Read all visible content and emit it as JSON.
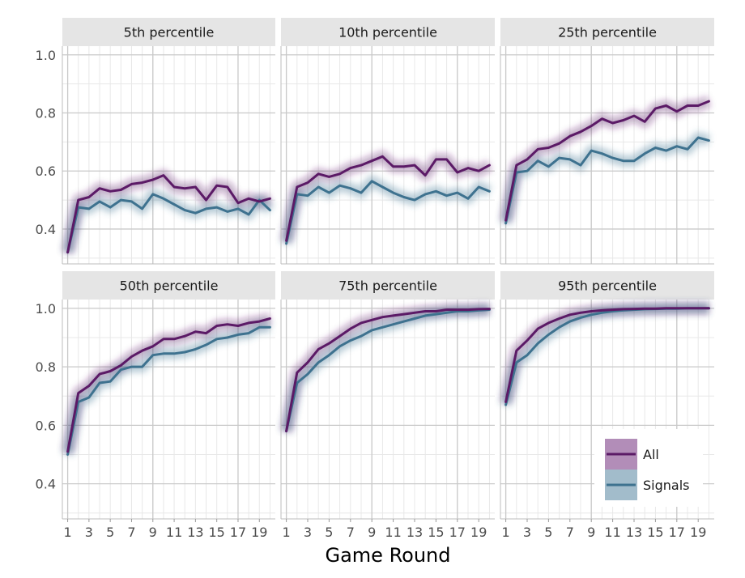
{
  "chart_data": {
    "type": "line",
    "facet_titles": [
      "5th percentile",
      "10th percentile",
      "25th percentile",
      "50th percentile",
      "75th percentile",
      "95th percentile"
    ],
    "xlabel": "Game Round",
    "ylabel": "",
    "x_tick_labels": [
      "1",
      "3",
      "5",
      "7",
      "9",
      "11",
      "13",
      "15",
      "17",
      "19"
    ],
    "y_tick_labels": [
      "0.4",
      "0.6",
      "0.8",
      "1.0"
    ],
    "x": [
      1,
      2,
      3,
      4,
      5,
      6,
      7,
      8,
      9,
      10,
      11,
      12,
      13,
      14,
      15,
      16,
      17,
      18,
      19,
      20
    ],
    "xlim": [
      0.5,
      20.5
    ],
    "ylim": [
      0.28,
      1.03
    ],
    "ribbons": true,
    "legend": {
      "position": "bottom-right, inside last panel",
      "entries": [
        {
          "label": "All",
          "color": "#5b1a66"
        },
        {
          "label": "Signals",
          "color": "#3e728f"
        }
      ]
    },
    "panels": [
      {
        "title": "5th percentile",
        "series": [
          {
            "name": "All",
            "color": "#5b1a66",
            "values": [
              0.32,
              0.5,
              0.51,
              0.54,
              0.53,
              0.535,
              0.555,
              0.56,
              0.57,
              0.585,
              0.545,
              0.54,
              0.545,
              0.5,
              0.55,
              0.545,
              0.49,
              0.505,
              0.495,
              0.505
            ]
          },
          {
            "name": "Signals",
            "color": "#3e728f",
            "values": [
              0.32,
              0.475,
              0.47,
              0.495,
              0.475,
              0.5,
              0.495,
              0.47,
              0.52,
              0.505,
              0.485,
              0.465,
              0.455,
              0.47,
              0.475,
              0.46,
              0.47,
              0.45,
              0.5,
              0.465
            ]
          }
        ]
      },
      {
        "title": "10th percentile",
        "series": [
          {
            "name": "All",
            "color": "#5b1a66",
            "values": [
              0.36,
              0.545,
              0.56,
              0.59,
              0.58,
              0.59,
              0.61,
              0.62,
              0.635,
              0.65,
              0.615,
              0.615,
              0.62,
              0.585,
              0.64,
              0.64,
              0.595,
              0.61,
              0.6,
              0.62
            ]
          },
          {
            "name": "Signals",
            "color": "#3e728f",
            "values": [
              0.35,
              0.52,
              0.515,
              0.545,
              0.525,
              0.55,
              0.54,
              0.525,
              0.565,
              0.545,
              0.525,
              0.51,
              0.5,
              0.52,
              0.53,
              0.515,
              0.525,
              0.505,
              0.545,
              0.53
            ]
          }
        ]
      },
      {
        "title": "25th percentile",
        "series": [
          {
            "name": "All",
            "color": "#5b1a66",
            "values": [
              0.43,
              0.62,
              0.64,
              0.675,
              0.68,
              0.695,
              0.72,
              0.735,
              0.755,
              0.78,
              0.765,
              0.775,
              0.79,
              0.77,
              0.815,
              0.825,
              0.805,
              0.825,
              0.825,
              0.84
            ]
          },
          {
            "name": "Signals",
            "color": "#3e728f",
            "values": [
              0.42,
              0.595,
              0.6,
              0.635,
              0.615,
              0.645,
              0.64,
              0.62,
              0.67,
              0.66,
              0.645,
              0.635,
              0.635,
              0.66,
              0.68,
              0.67,
              0.685,
              0.675,
              0.715,
              0.705
            ]
          }
        ]
      },
      {
        "title": "50th percentile",
        "series": [
          {
            "name": "All",
            "color": "#5b1a66",
            "values": [
              0.51,
              0.71,
              0.735,
              0.775,
              0.785,
              0.805,
              0.835,
              0.855,
              0.87,
              0.895,
              0.895,
              0.905,
              0.92,
              0.915,
              0.94,
              0.945,
              0.94,
              0.95,
              0.955,
              0.965
            ]
          },
          {
            "name": "Signals",
            "color": "#3e728f",
            "values": [
              0.5,
              0.68,
              0.695,
              0.745,
              0.75,
              0.79,
              0.8,
              0.8,
              0.84,
              0.845,
              0.845,
              0.85,
              0.86,
              0.875,
              0.895,
              0.9,
              0.91,
              0.915,
              0.935,
              0.935
            ]
          }
        ]
      },
      {
        "title": "75th percentile",
        "series": [
          {
            "name": "All",
            "color": "#5b1a66",
            "values": [
              0.58,
              0.78,
              0.815,
              0.86,
              0.88,
              0.905,
              0.93,
              0.95,
              0.96,
              0.97,
              0.975,
              0.98,
              0.985,
              0.99,
              0.99,
              0.995,
              0.995,
              0.995,
              0.997,
              0.998
            ]
          },
          {
            "name": "Signals",
            "color": "#3e728f",
            "values": [
              0.58,
              0.745,
              0.775,
              0.815,
              0.84,
              0.87,
              0.89,
              0.905,
              0.925,
              0.935,
              0.945,
              0.955,
              0.965,
              0.975,
              0.98,
              0.985,
              0.99,
              0.99,
              0.993,
              0.995
            ]
          }
        ]
      },
      {
        "title": "95th percentile",
        "series": [
          {
            "name": "All",
            "color": "#5b1a66",
            "values": [
              0.68,
              0.855,
              0.89,
              0.93,
              0.95,
              0.965,
              0.978,
              0.985,
              0.99,
              0.993,
              0.995,
              0.997,
              0.998,
              0.999,
              0.999,
              1.0,
              1.0,
              1.0,
              1.0,
              1.0
            ]
          },
          {
            "name": "Signals",
            "color": "#3e728f",
            "values": [
              0.67,
              0.815,
              0.84,
              0.88,
              0.91,
              0.935,
              0.955,
              0.968,
              0.978,
              0.985,
              0.99,
              0.993,
              0.995,
              0.997,
              0.998,
              0.999,
              0.999,
              1.0,
              1.0,
              1.0
            ]
          }
        ]
      }
    ]
  },
  "colors": {
    "strip_background": "#e5e5e5",
    "panel_background": "#ffffff",
    "grid_major": "#c9c9c9",
    "grid_minor": "#e8e8e8",
    "axis_text": "#4d4d4d",
    "legend_key_all": "#b28db8",
    "legend_key_signals": "#a2bccb"
  }
}
